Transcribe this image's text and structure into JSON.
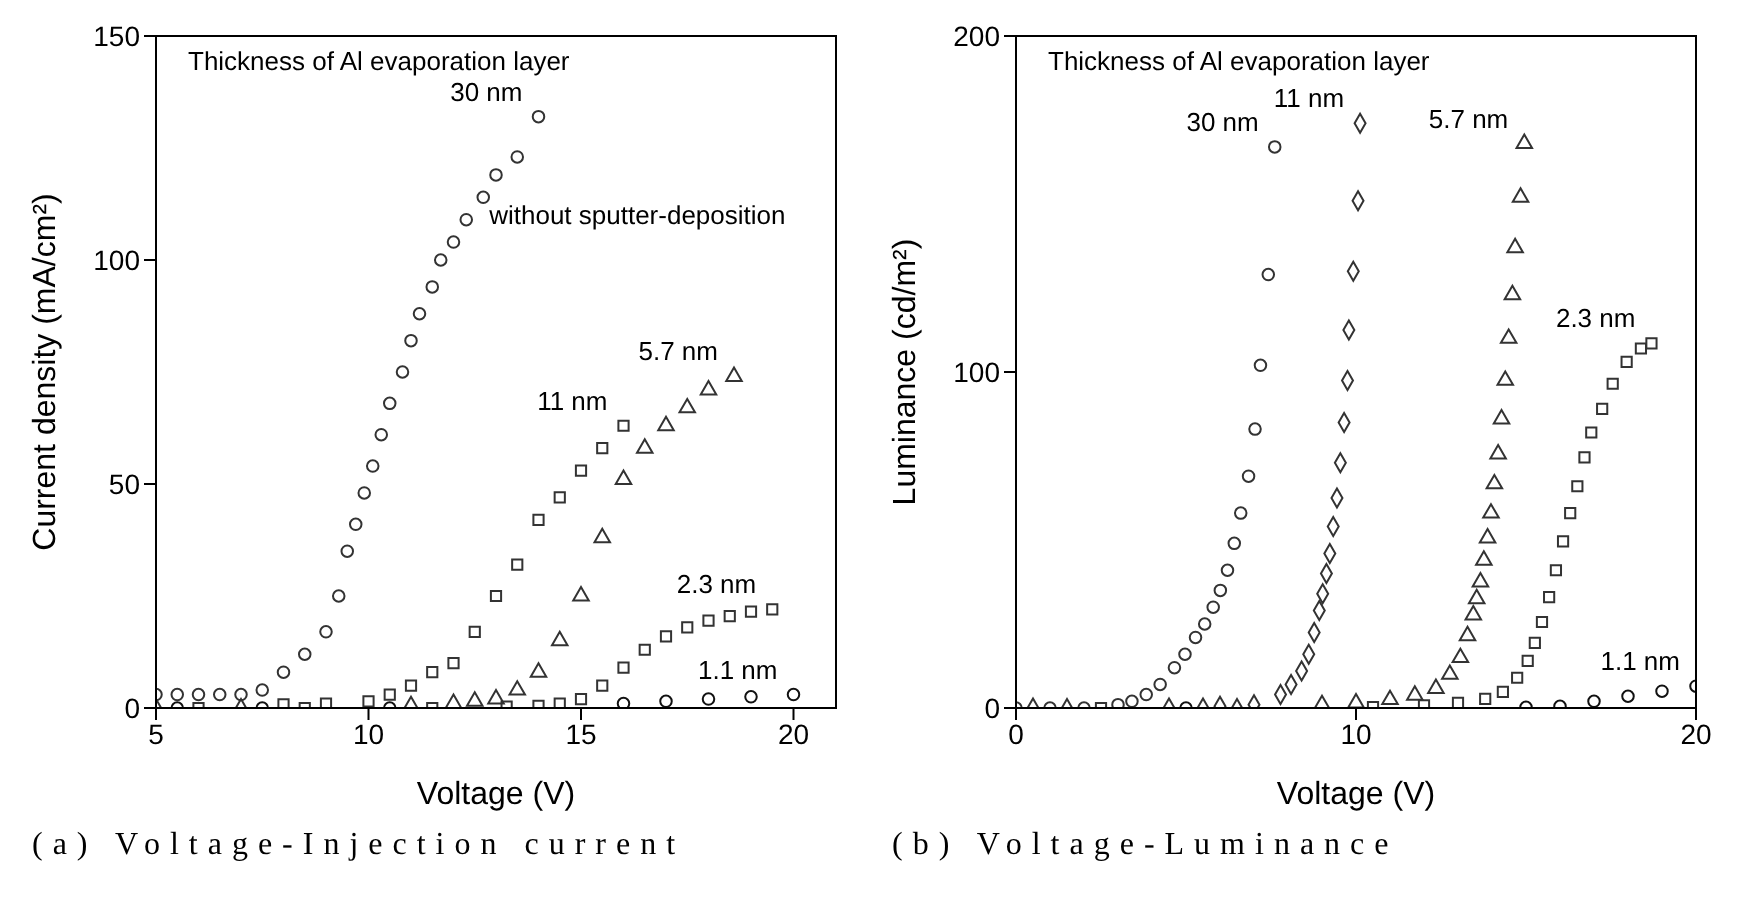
{
  "chart_data": [
    {
      "type": "scatter",
      "title": "(a) Voltage-Injection current",
      "xlabel": "Voltage (V)",
      "ylabel": "Current density (mA/cm²)",
      "annotations": [
        "Thickness of Al evaporation layer",
        "without sputter-deposition"
      ],
      "xlim": [
        5,
        21
      ],
      "xticks": [
        5,
        10,
        15,
        20
      ],
      "ylim": [
        0,
        150
      ],
      "yticks": [
        0,
        50,
        100,
        150
      ],
      "legend": false,
      "series": [
        {
          "name": "30 nm",
          "color": "#333333",
          "marker": "circle",
          "x": [
            5,
            5.5,
            6,
            6.5,
            7,
            7.5,
            8,
            8.5,
            9,
            9.3,
            9.5,
            9.7,
            9.9,
            10.1,
            10.3,
            10.5,
            10.8,
            11,
            11.2,
            11.5,
            11.7,
            12,
            12.3,
            12.7,
            13,
            13.5,
            14
          ],
          "values": [
            3,
            3,
            3,
            3,
            3,
            4,
            8,
            12,
            17,
            25,
            35,
            41,
            48,
            54,
            61,
            68,
            75,
            82,
            88,
            94,
            100,
            104,
            109,
            114,
            119,
            123,
            132
          ]
        },
        {
          "name": "11 nm",
          "color": "#333333",
          "marker": "square",
          "x": [
            8,
            9,
            10,
            10.5,
            11,
            11.5,
            12,
            12.5,
            13,
            13.5,
            14,
            14.5,
            15,
            15.5,
            16
          ],
          "values": [
            0.8,
            1,
            1.5,
            3,
            5,
            8,
            10,
            17,
            25,
            32,
            42,
            47,
            53,
            58,
            63
          ]
        },
        {
          "name": "5.7 nm",
          "color": "#333333",
          "marker": "triangle",
          "x": [
            5,
            7,
            11,
            12,
            12.5,
            13,
            13.5,
            14,
            14.5,
            15,
            15.5,
            16,
            16.5,
            17,
            17.5,
            18,
            18.6
          ],
          "values": [
            0,
            0,
            0.5,
            1,
            1.5,
            2,
            4,
            8,
            15,
            25,
            38,
            51,
            58,
            63,
            67,
            71,
            74
          ]
        },
        {
          "name": "2.3 nm",
          "color": "#333333",
          "marker": "square",
          "x": [
            6,
            8.5,
            11.5,
            13.25,
            14,
            14.5,
            15,
            15.5,
            16,
            16.5,
            17,
            17.5,
            18,
            18.5,
            19,
            19.5
          ],
          "values": [
            0,
            0,
            0,
            0.3,
            0.5,
            1,
            2,
            5,
            9,
            13,
            16,
            18,
            19.5,
            20.5,
            21.5,
            22
          ]
        },
        {
          "name": "1.1 nm",
          "color": "#111111",
          "marker": "circle",
          "x": [
            5.5,
            7.5,
            10.5,
            16,
            17,
            18,
            19,
            20
          ],
          "values": [
            0,
            0,
            0,
            1,
            1.5,
            2,
            2.5,
            3
          ]
        }
      ]
    },
    {
      "type": "scatter",
      "title": "(b) Voltage-Luminance",
      "xlabel": "Voltage (V)",
      "ylabel": "Luminance (cd/m²)",
      "annotations": [
        "Thickness of Al evaporation layer"
      ],
      "xlim": [
        0,
        20
      ],
      "xticks": [
        0,
        10,
        20
      ],
      "ylim": [
        0,
        200
      ],
      "yticks": [
        0,
        100,
        200
      ],
      "legend": false,
      "series": [
        {
          "name": "30 nm",
          "color": "#333333",
          "marker": "circle",
          "x": [
            0,
            1,
            2,
            3,
            3.41,
            3.83,
            4.24,
            4.66,
            4.97,
            5.28,
            5.55,
            5.8,
            6.01,
            6.22,
            6.42,
            6.61,
            6.84,
            7.03,
            7.19,
            7.42,
            7.61
          ],
          "values": [
            0,
            0,
            0,
            1,
            2,
            4,
            7,
            12,
            16,
            21,
            25,
            30,
            35,
            41,
            49,
            58,
            69,
            83,
            102,
            129,
            167
          ]
        },
        {
          "name": "11 nm",
          "color": "#333333",
          "marker": "diamond",
          "x": [
            0.5,
            4.5,
            5.5,
            6,
            7,
            7.78,
            8.09,
            8.4,
            8.61,
            8.77,
            8.92,
            9.02,
            9.13,
            9.23,
            9.33,
            9.44,
            9.54,
            9.65,
            9.75,
            9.79,
            9.92,
            10.06,
            10.12
          ],
          "values": [
            0,
            0,
            0,
            0.5,
            1,
            4,
            7,
            11,
            16,
            22.5,
            29,
            34,
            40,
            46,
            54,
            62.5,
            73,
            85,
            97.5,
            112.5,
            130,
            151,
            174
          ]
        },
        {
          "name": "5.7 nm",
          "color": "#333333",
          "marker": "triangle",
          "x": [
            1.5,
            6.5,
            9,
            10,
            11,
            11.73,
            12.35,
            12.76,
            13.07,
            13.28,
            13.45,
            13.55,
            13.66,
            13.76,
            13.87,
            13.97,
            14.07,
            14.18,
            14.28,
            14.39,
            14.49,
            14.6,
            14.68,
            14.84,
            14.95
          ],
          "values": [
            0,
            0,
            1,
            1.5,
            2.5,
            3.8,
            5.8,
            10,
            15,
            21.5,
            27.7,
            32.5,
            37.5,
            44,
            50.6,
            58,
            66.7,
            75.6,
            86,
            97.5,
            110,
            123,
            137,
            152,
            168
          ]
        },
        {
          "name": "2.3 nm",
          "color": "#333333",
          "marker": "square",
          "x": [
            2.5,
            10.5,
            12,
            13,
            13.8,
            14.32,
            14.74,
            15.05,
            15.26,
            15.47,
            15.68,
            15.88,
            16.09,
            16.3,
            16.51,
            16.72,
            16.92,
            17.24,
            17.55,
            17.96,
            18.38,
            18.69
          ],
          "values": [
            0,
            0.3,
            0.8,
            1.5,
            2.7,
            4.8,
            9,
            14,
            19.4,
            25.6,
            33,
            41,
            49.6,
            58,
            66,
            74.6,
            82,
            89,
            96.5,
            103,
            107,
            108.5
          ]
        },
        {
          "name": "1.1 nm",
          "color": "#111111",
          "marker": "circle",
          "x": [
            5,
            15,
            16,
            17,
            18,
            19,
            20
          ],
          "values": [
            0,
            0.2,
            0.5,
            2,
            3.5,
            5,
            6.5
          ]
        }
      ]
    }
  ]
}
